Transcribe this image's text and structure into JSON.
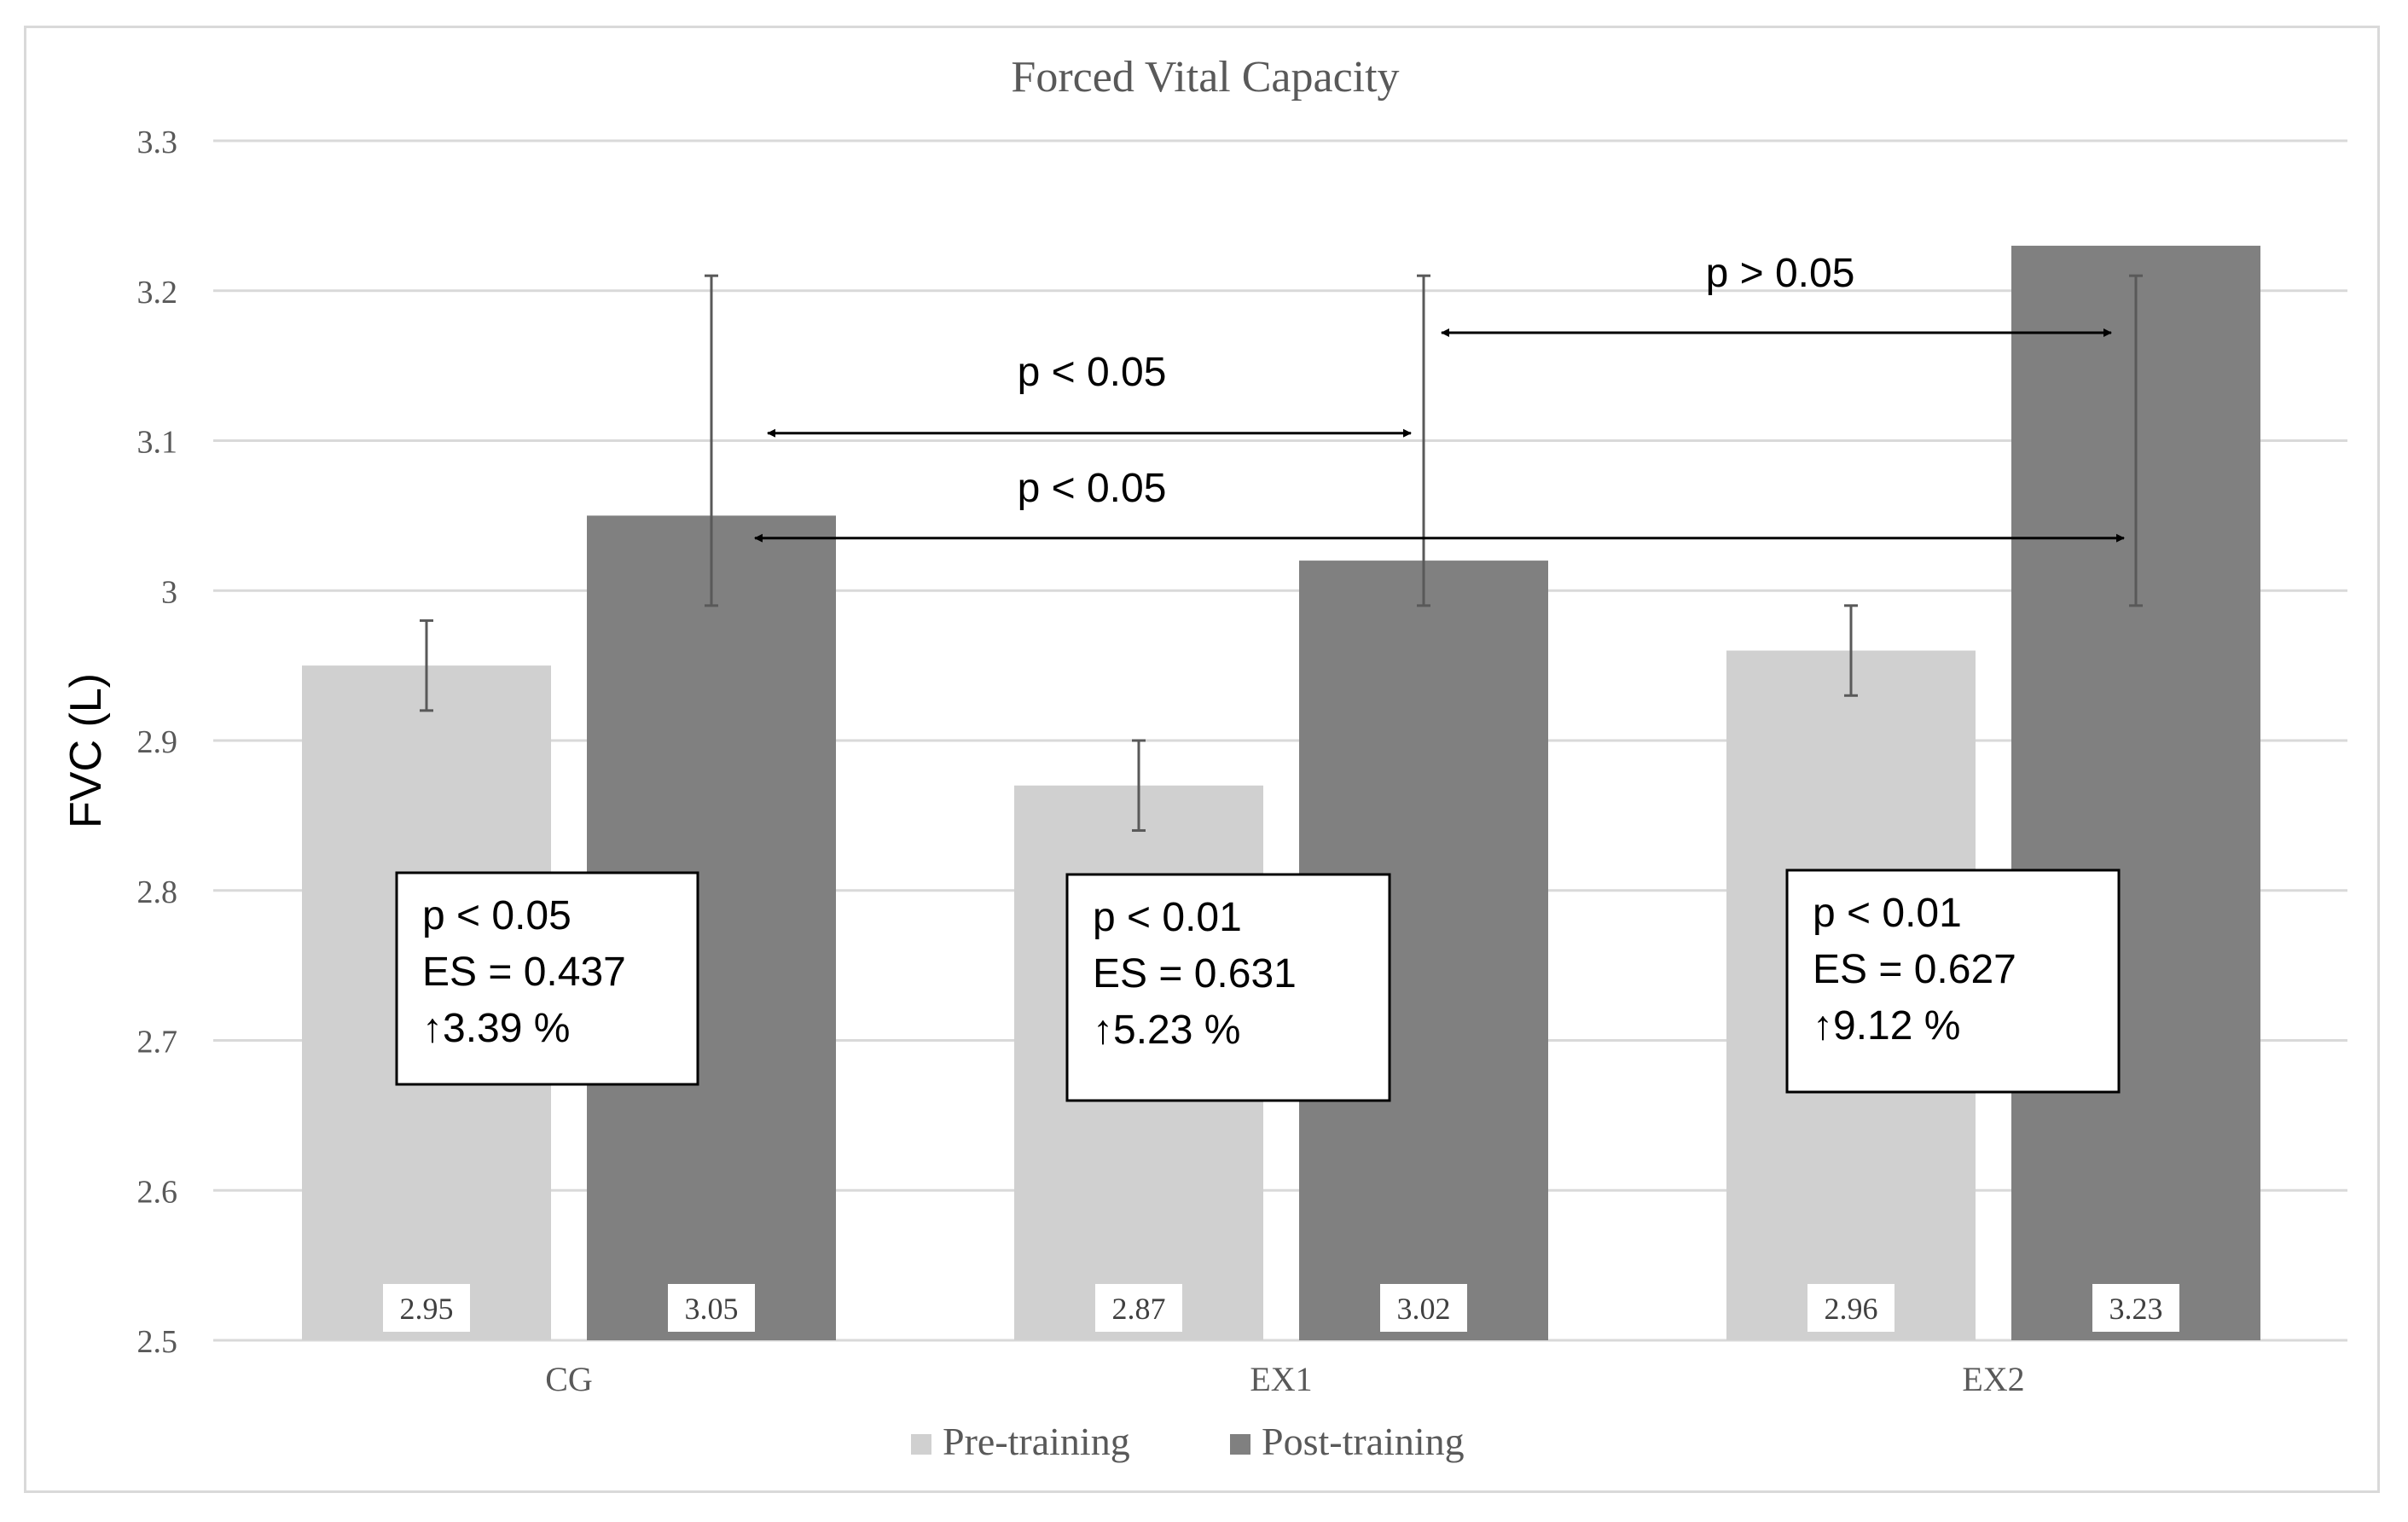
{
  "chart_data": {
    "type": "bar",
    "title": "Forced Vital Capacity",
    "xlabel": "",
    "ylabel": "FVC (L)",
    "ylim": [
      2.5,
      3.3
    ],
    "yticks": [
      2.5,
      2.6,
      2.7,
      2.8,
      2.9,
      3,
      3.1,
      3.2,
      3.3
    ],
    "ytick_labels": [
      "2.5",
      "2.6",
      "2.7",
      "2.8",
      "2.9",
      "3",
      "3.1",
      "3.2",
      "3.3"
    ],
    "grid": true,
    "legend_position": "bottom",
    "categories": [
      "CG",
      "EX1",
      "EX2"
    ],
    "series": [
      {
        "name": "Pre-training",
        "color": "#d0d0d0",
        "values": [
          2.95,
          2.87,
          2.96
        ],
        "value_labels": [
          "2.95",
          "2.87",
          "2.96"
        ],
        "error_low": [
          2.92,
          2.84,
          2.93
        ],
        "error_high": [
          2.98,
          2.9,
          2.99
        ]
      },
      {
        "name": "Post-training",
        "color": "#808080",
        "values": [
          3.05,
          3.02,
          3.23
        ],
        "value_labels": [
          "3.05",
          "3.02",
          "3.23"
        ],
        "error_low": [
          2.99,
          2.99,
          2.99
        ],
        "error_high": [
          3.21,
          3.21,
          3.21
        ]
      }
    ],
    "stat_boxes": [
      {
        "category": "CG",
        "lines": [
          "p < 0.05",
          "ES = 0.437",
          "↑3.39 %"
        ]
      },
      {
        "category": "EX1",
        "lines": [
          "p < 0.01",
          "ES = 0.631",
          "↑5.23 %"
        ]
      },
      {
        "category": "EX2",
        "lines": [
          "p < 0.01",
          "ES = 0.627",
          "↑9.12 %"
        ]
      }
    ],
    "comparisons": [
      {
        "from": "CG",
        "to": "EX1",
        "label": "p < 0.05",
        "y_value": 3.105
      },
      {
        "from": "CG",
        "to": "EX2",
        "label": "p < 0.05",
        "y_value": 3.035
      },
      {
        "from": "EX1",
        "to": "EX2",
        "label": "p > 0.05",
        "y_value": 3.172
      }
    ]
  }
}
